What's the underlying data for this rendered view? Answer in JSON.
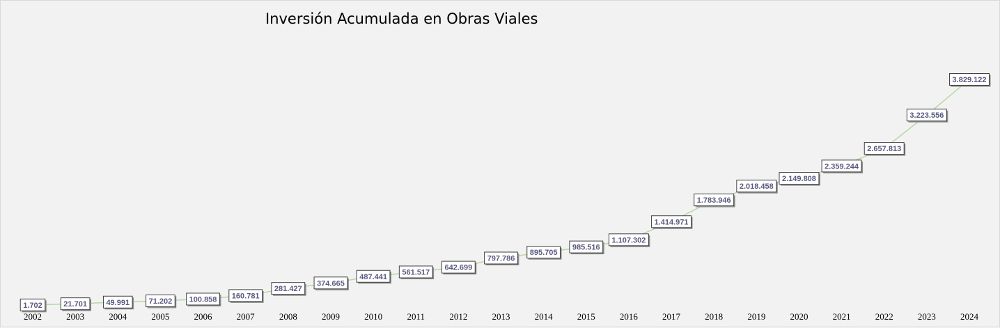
{
  "chart_data": {
    "type": "line",
    "title": "Inversión Acumulada en Obras Viales",
    "xlabel": "",
    "ylabel": "",
    "categories": [
      "2002",
      "2003",
      "2004",
      "2005",
      "2006",
      "2007",
      "2008",
      "2009",
      "2010",
      "2011",
      "2012",
      "2013",
      "2014",
      "2015",
      "2016",
      "2017",
      "2018",
      "2019",
      "2020",
      "2021",
      "2022",
      "2023",
      "2024"
    ],
    "series": [
      {
        "values": [
          1702,
          21701,
          49991,
          71202,
          100858,
          160781,
          281427,
          374665,
          487441,
          561517,
          642699,
          797786,
          895705,
          985516,
          1107302,
          1414971,
          1783946,
          2018458,
          2149808,
          2359244,
          2657813,
          3223556,
          3829122
        ],
        "labels": [
          "1.702",
          "21.701",
          "49.991",
          "71.202",
          "100.858",
          "160.781",
          "281.427",
          "374.665",
          "487.441",
          "561.517",
          "642.699",
          "797.786",
          "895.705",
          "985.516",
          "1.107.302",
          "1.414.971",
          "1.783.946",
          "2.018.458",
          "2.149.808",
          "2.359.244",
          "2.657.813",
          "3.223.556",
          "3.829.122"
        ]
      }
    ],
    "ylim": [
      0,
      3900000
    ],
    "grid": false,
    "legend": "none",
    "line_color": "#b7d7a8"
  }
}
